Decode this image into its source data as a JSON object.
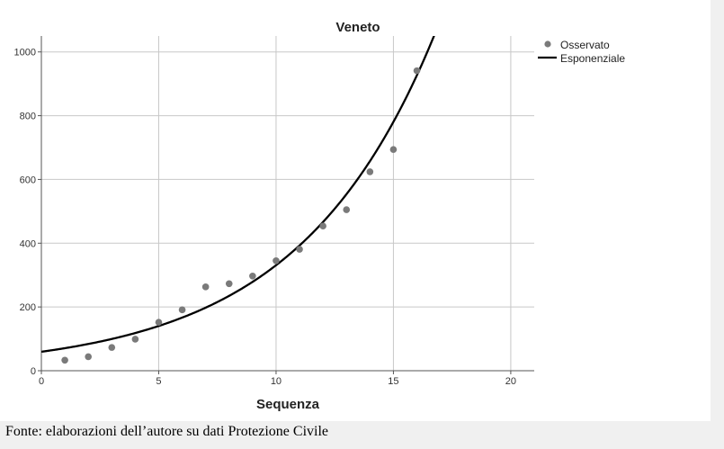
{
  "chart_data": {
    "type": "scatter",
    "title": "Veneto",
    "xlabel": "Sequenza",
    "ylabel": "",
    "xlim": [
      0,
      21
    ],
    "ylim": [
      0,
      1050
    ],
    "xticks": [
      0,
      5,
      10,
      15,
      20
    ],
    "yticks": [
      0,
      200,
      400,
      600,
      800,
      1000
    ],
    "grid": true,
    "legend_position": "right",
    "series": [
      {
        "name": "Osservato",
        "kind": "points",
        "color": "#7a7a7a",
        "x": [
          1,
          2,
          3,
          4,
          5,
          6,
          7,
          8,
          9,
          10,
          11,
          12,
          13,
          14,
          15,
          16
        ],
        "y": [
          33,
          44,
          73,
          99,
          152,
          191,
          263,
          273,
          297,
          345,
          381,
          454,
          505,
          624,
          694,
          941
        ]
      },
      {
        "name": "Esponenziale",
        "kind": "curve",
        "color": "#000000",
        "model": "exponential",
        "a": 59.5,
        "b": 0.1716
      }
    ]
  },
  "caption": "Fonte: elaborazioni dell’autore su dati Protezione Civile"
}
